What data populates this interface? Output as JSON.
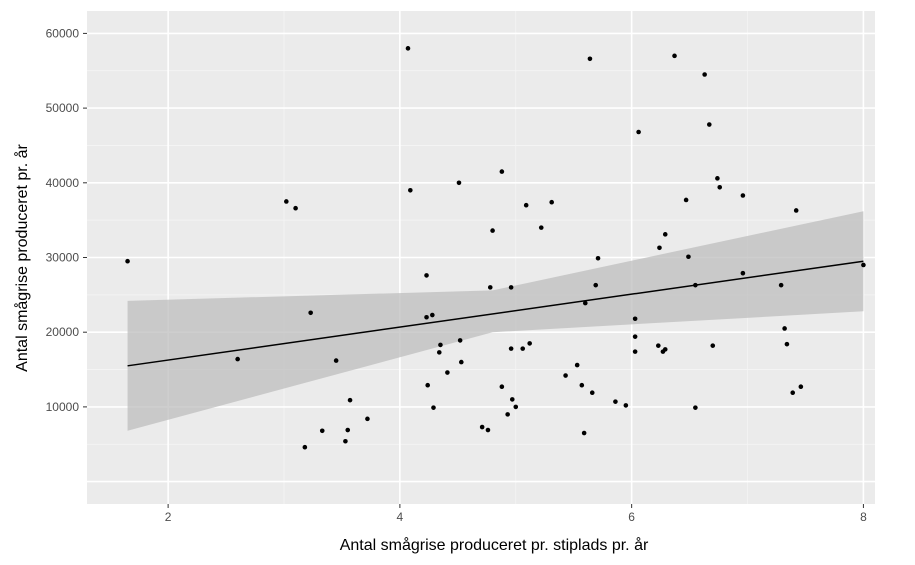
{
  "chart_data": {
    "type": "scatter",
    "title": "",
    "xlabel": "Antal smågrise produceret pr. stiplads pr. år",
    "ylabel": "Antal smågrise produceret pr. år",
    "xlim": [
      1.3,
      8.1
    ],
    "ylim": [
      -3000,
      63000
    ],
    "x_ticks": [
      2,
      4,
      6,
      8
    ],
    "x_tick_labels": [
      "2",
      "4",
      "6",
      "8"
    ],
    "y_ticks": [
      10000,
      20000,
      30000,
      40000,
      50000,
      60000
    ],
    "y_tick_labels": [
      "10000",
      "20000",
      "30000",
      "40000",
      "50000",
      "60000"
    ],
    "grid": true,
    "panel_background": "#ebebeb",
    "point_color": "#000000",
    "points": [
      {
        "x": 1.65,
        "y": 29500
      },
      {
        "x": 2.6,
        "y": 16400
      },
      {
        "x": 3.02,
        "y": 37500
      },
      {
        "x": 3.1,
        "y": 36600
      },
      {
        "x": 3.18,
        "y": 4600
      },
      {
        "x": 3.23,
        "y": 22600
      },
      {
        "x": 3.33,
        "y": 6800
      },
      {
        "x": 3.45,
        "y": 16200
      },
      {
        "x": 3.53,
        "y": 5400
      },
      {
        "x": 3.55,
        "y": 6900
      },
      {
        "x": 3.57,
        "y": 10900
      },
      {
        "x": 3.72,
        "y": 8400
      },
      {
        "x": 4.07,
        "y": 58000
      },
      {
        "x": 4.09,
        "y": 39000
      },
      {
        "x": 4.23,
        "y": 27600
      },
      {
        "x": 4.23,
        "y": 22000
      },
      {
        "x": 4.24,
        "y": 12900
      },
      {
        "x": 4.28,
        "y": 22300
      },
      {
        "x": 4.29,
        "y": 9900
      },
      {
        "x": 4.34,
        "y": 17300
      },
      {
        "x": 4.35,
        "y": 18300
      },
      {
        "x": 4.41,
        "y": 14600
      },
      {
        "x": 4.51,
        "y": 40000
      },
      {
        "x": 4.52,
        "y": 18900
      },
      {
        "x": 4.53,
        "y": 16000
      },
      {
        "x": 4.71,
        "y": 7300
      },
      {
        "x": 4.76,
        "y": 6900
      },
      {
        "x": 4.78,
        "y": 26000
      },
      {
        "x": 4.8,
        "y": 33600
      },
      {
        "x": 4.88,
        "y": 41500
      },
      {
        "x": 4.88,
        "y": 12700
      },
      {
        "x": 4.93,
        "y": 9000
      },
      {
        "x": 4.96,
        "y": 26000
      },
      {
        "x": 4.96,
        "y": 17800
      },
      {
        "x": 4.97,
        "y": 11000
      },
      {
        "x": 5.0,
        "y": 10000
      },
      {
        "x": 5.06,
        "y": 17800
      },
      {
        "x": 5.09,
        "y": 37000
      },
      {
        "x": 5.12,
        "y": 18500
      },
      {
        "x": 5.22,
        "y": 34000
      },
      {
        "x": 5.31,
        "y": 37400
      },
      {
        "x": 5.43,
        "y": 14200
      },
      {
        "x": 5.53,
        "y": 15600
      },
      {
        "x": 5.57,
        "y": 12900
      },
      {
        "x": 5.59,
        "y": 6500
      },
      {
        "x": 5.6,
        "y": 23900
      },
      {
        "x": 5.64,
        "y": 56600
      },
      {
        "x": 5.66,
        "y": 11900
      },
      {
        "x": 5.69,
        "y": 26300
      },
      {
        "x": 5.71,
        "y": 29900
      },
      {
        "x": 5.86,
        "y": 10700
      },
      {
        "x": 5.95,
        "y": 10200
      },
      {
        "x": 6.03,
        "y": 21800
      },
      {
        "x": 6.03,
        "y": 19400
      },
      {
        "x": 6.03,
        "y": 17400
      },
      {
        "x": 6.06,
        "y": 46800
      },
      {
        "x": 6.23,
        "y": 18200
      },
      {
        "x": 6.24,
        "y": 31300
      },
      {
        "x": 6.27,
        "y": 17400
      },
      {
        "x": 6.29,
        "y": 33100
      },
      {
        "x": 6.29,
        "y": 17700
      },
      {
        "x": 6.37,
        "y": 57000
      },
      {
        "x": 6.47,
        "y": 37700
      },
      {
        "x": 6.49,
        "y": 30100
      },
      {
        "x": 6.55,
        "y": 26300
      },
      {
        "x": 6.55,
        "y": 9900
      },
      {
        "x": 6.63,
        "y": 54500
      },
      {
        "x": 6.67,
        "y": 47800
      },
      {
        "x": 6.7,
        "y": 18200
      },
      {
        "x": 6.74,
        "y": 40600
      },
      {
        "x": 6.76,
        "y": 39400
      },
      {
        "x": 6.96,
        "y": 38300
      },
      {
        "x": 6.96,
        "y": 27900
      },
      {
        "x": 7.29,
        "y": 26300
      },
      {
        "x": 7.32,
        "y": 20500
      },
      {
        "x": 7.34,
        "y": 18400
      },
      {
        "x": 7.39,
        "y": 11900
      },
      {
        "x": 7.42,
        "y": 36300
      },
      {
        "x": 7.46,
        "y": 12700
      },
      {
        "x": 8.0,
        "y": 29000
      }
    ],
    "trend_line": {
      "x_start": 1.65,
      "y_start": 15500,
      "x_end": 8.0,
      "y_end": 29500
    },
    "confidence_band": {
      "color": "#bdbdbd",
      "x": [
        1.65,
        4.8,
        8.0
      ],
      "lower": [
        6800,
        20000,
        22800
      ],
      "upper": [
        24200,
        25600,
        36200
      ]
    }
  }
}
